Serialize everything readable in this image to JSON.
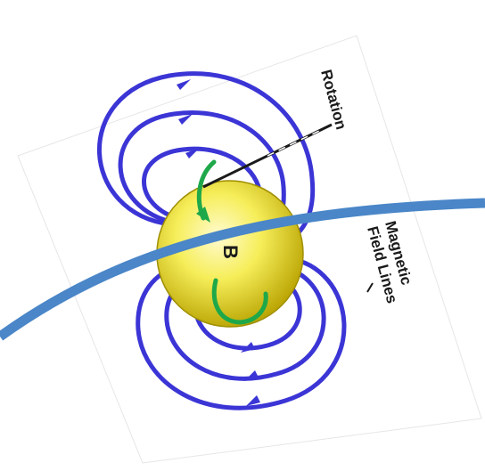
{
  "labels": {
    "rotation": "Rotation",
    "magnetic_line1": "Magnetic",
    "magnetic_line2": "Field Lines",
    "sphere_mark": "B"
  },
  "colors": {
    "field_lines": "#3b35d6",
    "rotation_arrow": "#1ea84a",
    "sphere_light": "#fffac0",
    "sphere_dark": "#c9b400",
    "overlay_curve": "#4a86c8",
    "background": "#ffffff"
  },
  "icons": {
    "field_arrow": "arrowhead",
    "rotation_arrow": "curved-arrow"
  }
}
